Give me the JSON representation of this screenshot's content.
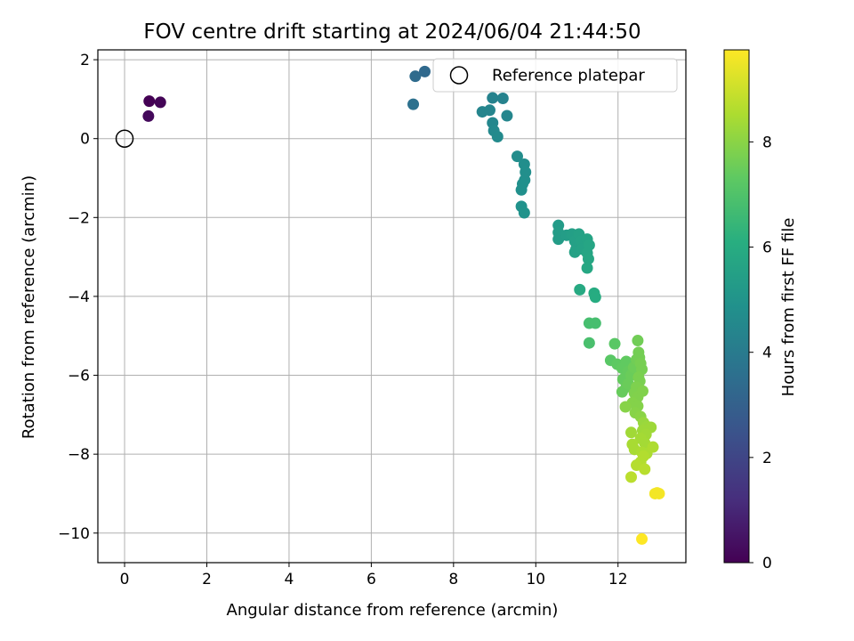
{
  "chart_data": {
    "type": "scatter",
    "title": "FOV centre drift starting at 2024/06/04 21:44:50",
    "xlabel": "Angular distance from reference (arcmin)",
    "ylabel": "Rotation from reference (arcmin)",
    "xlim": [
      -0.65,
      13.65
    ],
    "ylim": [
      -10.75,
      2.25
    ],
    "xticks": [
      0,
      2,
      4,
      6,
      8,
      10,
      12
    ],
    "yticks": [
      2,
      0,
      -2,
      -4,
      -6,
      -8,
      -10
    ],
    "grid": true,
    "legend": {
      "placement": "top-right",
      "entries": [
        "Reference platepar"
      ]
    },
    "colorbar": {
      "label": "Hours from first FF file",
      "range": [
        0,
        9.75
      ],
      "ticks": [
        0,
        2,
        4,
        6,
        8
      ],
      "colormap": "viridis"
    },
    "reference_point": {
      "x": 0,
      "y": 0
    },
    "points": [
      {
        "x": 0.6,
        "y": 0.95,
        "c": 0.0
      },
      {
        "x": 0.87,
        "y": 0.92,
        "c": 0.1
      },
      {
        "x": 0.58,
        "y": 0.57,
        "c": 0.2
      },
      {
        "x": 7.3,
        "y": 1.7,
        "c": 3.3
      },
      {
        "x": 7.07,
        "y": 1.58,
        "c": 3.4
      },
      {
        "x": 7.02,
        "y": 0.87,
        "c": 3.6
      },
      {
        "x": 8.95,
        "y": 1.03,
        "c": 4.3
      },
      {
        "x": 9.2,
        "y": 1.02,
        "c": 4.3
      },
      {
        "x": 8.7,
        "y": 0.68,
        "c": 4.4
      },
      {
        "x": 8.88,
        "y": 0.72,
        "c": 4.4
      },
      {
        "x": 9.3,
        "y": 0.58,
        "c": 4.45
      },
      {
        "x": 8.95,
        "y": 0.4,
        "c": 4.5
      },
      {
        "x": 8.98,
        "y": 0.2,
        "c": 4.55
      },
      {
        "x": 9.07,
        "y": 0.05,
        "c": 4.6
      },
      {
        "x": 9.55,
        "y": -0.45,
        "c": 4.7
      },
      {
        "x": 9.72,
        "y": -0.65,
        "c": 4.75
      },
      {
        "x": 9.75,
        "y": -0.85,
        "c": 4.8
      },
      {
        "x": 9.73,
        "y": -1.05,
        "c": 4.8
      },
      {
        "x": 9.68,
        "y": -1.15,
        "c": 4.85
      },
      {
        "x": 9.65,
        "y": -1.3,
        "c": 4.85
      },
      {
        "x": 9.65,
        "y": -1.72,
        "c": 4.9
      },
      {
        "x": 9.72,
        "y": -1.88,
        "c": 4.95
      },
      {
        "x": 10.55,
        "y": -2.2,
        "c": 5.3
      },
      {
        "x": 10.55,
        "y": -2.38,
        "c": 5.35
      },
      {
        "x": 10.55,
        "y": -2.55,
        "c": 5.35
      },
      {
        "x": 10.75,
        "y": -2.45,
        "c": 5.4
      },
      {
        "x": 10.88,
        "y": -2.42,
        "c": 5.45
      },
      {
        "x": 10.95,
        "y": -2.6,
        "c": 5.5
      },
      {
        "x": 10.98,
        "y": -2.8,
        "c": 5.5
      },
      {
        "x": 10.95,
        "y": -2.88,
        "c": 5.55
      },
      {
        "x": 11.05,
        "y": -2.42,
        "c": 5.55
      },
      {
        "x": 11.1,
        "y": -2.6,
        "c": 5.6
      },
      {
        "x": 11.12,
        "y": -2.8,
        "c": 5.6
      },
      {
        "x": 11.25,
        "y": -2.55,
        "c": 5.65
      },
      {
        "x": 11.3,
        "y": -2.7,
        "c": 5.7
      },
      {
        "x": 11.25,
        "y": -2.9,
        "c": 5.7
      },
      {
        "x": 11.28,
        "y": -3.05,
        "c": 5.75
      },
      {
        "x": 11.25,
        "y": -3.28,
        "c": 5.8
      },
      {
        "x": 11.07,
        "y": -3.83,
        "c": 5.9
      },
      {
        "x": 11.42,
        "y": -3.92,
        "c": 5.95
      },
      {
        "x": 11.45,
        "y": -4.02,
        "c": 6.0
      },
      {
        "x": 11.3,
        "y": -4.68,
        "c": 6.8
      },
      {
        "x": 11.45,
        "y": -4.68,
        "c": 6.8
      },
      {
        "x": 11.3,
        "y": -5.18,
        "c": 6.85
      },
      {
        "x": 11.92,
        "y": -5.2,
        "c": 7.2
      },
      {
        "x": 11.82,
        "y": -5.62,
        "c": 7.2
      },
      {
        "x": 11.98,
        "y": -5.72,
        "c": 7.3
      },
      {
        "x": 12.1,
        "y": -5.82,
        "c": 7.35
      },
      {
        "x": 12.2,
        "y": -5.65,
        "c": 7.35
      },
      {
        "x": 12.25,
        "y": -5.9,
        "c": 7.4
      },
      {
        "x": 12.12,
        "y": -6.1,
        "c": 7.4
      },
      {
        "x": 12.2,
        "y": -6.3,
        "c": 7.45
      },
      {
        "x": 12.1,
        "y": -6.42,
        "c": 7.45
      },
      {
        "x": 12.25,
        "y": -6.22,
        "c": 7.5
      },
      {
        "x": 12.32,
        "y": -6.0,
        "c": 7.5
      },
      {
        "x": 12.38,
        "y": -5.8,
        "c": 7.55
      },
      {
        "x": 12.45,
        "y": -5.6,
        "c": 7.6
      },
      {
        "x": 12.48,
        "y": -5.12,
        "c": 7.6
      },
      {
        "x": 12.5,
        "y": -5.42,
        "c": 7.65
      },
      {
        "x": 12.52,
        "y": -5.55,
        "c": 7.65
      },
      {
        "x": 12.55,
        "y": -5.7,
        "c": 7.7
      },
      {
        "x": 12.58,
        "y": -5.85,
        "c": 7.7
      },
      {
        "x": 12.5,
        "y": -6.05,
        "c": 7.75
      },
      {
        "x": 12.53,
        "y": -6.15,
        "c": 7.75
      },
      {
        "x": 12.45,
        "y": -6.3,
        "c": 7.8
      },
      {
        "x": 12.4,
        "y": -6.45,
        "c": 7.8
      },
      {
        "x": 12.48,
        "y": -6.55,
        "c": 7.85
      },
      {
        "x": 12.6,
        "y": -6.4,
        "c": 7.85
      },
      {
        "x": 12.35,
        "y": -6.7,
        "c": 7.9
      },
      {
        "x": 12.48,
        "y": -6.78,
        "c": 7.9
      },
      {
        "x": 12.18,
        "y": -6.8,
        "c": 7.95
      },
      {
        "x": 12.42,
        "y": -6.95,
        "c": 7.95
      },
      {
        "x": 12.55,
        "y": -7.05,
        "c": 8.0
      },
      {
        "x": 12.62,
        "y": -7.2,
        "c": 8.2
      },
      {
        "x": 12.7,
        "y": -7.3,
        "c": 8.25
      },
      {
        "x": 12.8,
        "y": -7.32,
        "c": 8.3
      },
      {
        "x": 12.6,
        "y": -7.4,
        "c": 8.3
      },
      {
        "x": 12.68,
        "y": -7.5,
        "c": 8.35
      },
      {
        "x": 12.32,
        "y": -7.45,
        "c": 8.35
      },
      {
        "x": 12.55,
        "y": -7.6,
        "c": 8.4
      },
      {
        "x": 12.65,
        "y": -7.72,
        "c": 8.4
      },
      {
        "x": 12.35,
        "y": -7.75,
        "c": 8.45
      },
      {
        "x": 12.4,
        "y": -7.88,
        "c": 8.45
      },
      {
        "x": 12.58,
        "y": -7.95,
        "c": 8.5
      },
      {
        "x": 12.7,
        "y": -7.98,
        "c": 8.5
      },
      {
        "x": 12.85,
        "y": -7.82,
        "c": 8.55
      },
      {
        "x": 12.62,
        "y": -8.05,
        "c": 8.6
      },
      {
        "x": 12.55,
        "y": -8.2,
        "c": 8.6
      },
      {
        "x": 12.45,
        "y": -8.28,
        "c": 8.65
      },
      {
        "x": 12.65,
        "y": -8.38,
        "c": 8.7
      },
      {
        "x": 12.32,
        "y": -8.58,
        "c": 8.75
      },
      {
        "x": 12.9,
        "y": -9.0,
        "c": 9.6
      },
      {
        "x": 13.0,
        "y": -9.0,
        "c": 9.65
      },
      {
        "x": 12.95,
        "y": -8.98,
        "c": 9.6
      },
      {
        "x": 12.58,
        "y": -10.15,
        "c": 9.75
      }
    ]
  }
}
